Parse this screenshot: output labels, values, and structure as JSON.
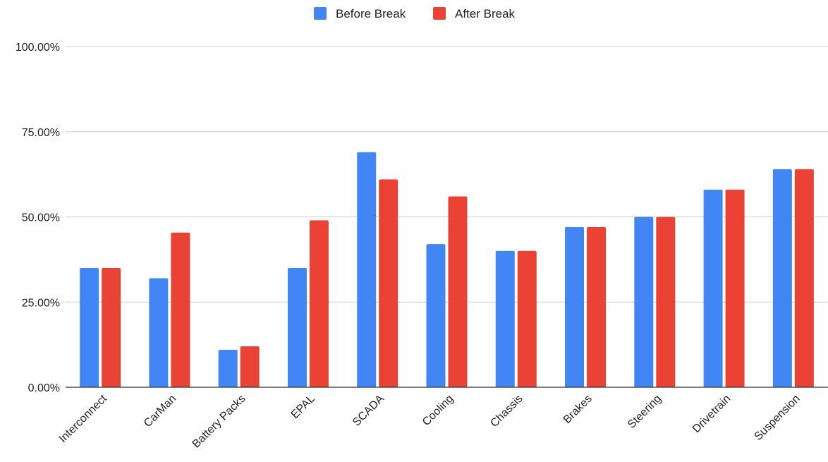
{
  "colors": {
    "before": "#4285f4",
    "after": "#ea4335",
    "grid": "#cccccc",
    "axis": "#333333"
  },
  "chart_data": {
    "type": "bar",
    "categories": [
      "Interconnect",
      "CarMan",
      "Battery Packs",
      "EPAL",
      "SCADA",
      "Cooling",
      "Chassis",
      "Brakes",
      "Steering",
      "Drivetrain",
      "Suspension"
    ],
    "series": [
      {
        "name": "Before Break",
        "values": [
          35,
          32,
          11,
          35,
          69,
          42,
          40,
          47,
          50,
          58,
          64
        ]
      },
      {
        "name": "After Break",
        "values": [
          35,
          45.4,
          12,
          49,
          61,
          56,
          40,
          47,
          50,
          58,
          64
        ]
      }
    ],
    "yticks": [
      "0.00%",
      "25.00%",
      "50.00%",
      "75.00%",
      "100.00%"
    ],
    "ylim": [
      0,
      100
    ],
    "grid": true,
    "legend_position": "top-center",
    "title": "",
    "xlabel": "",
    "ylabel": ""
  }
}
